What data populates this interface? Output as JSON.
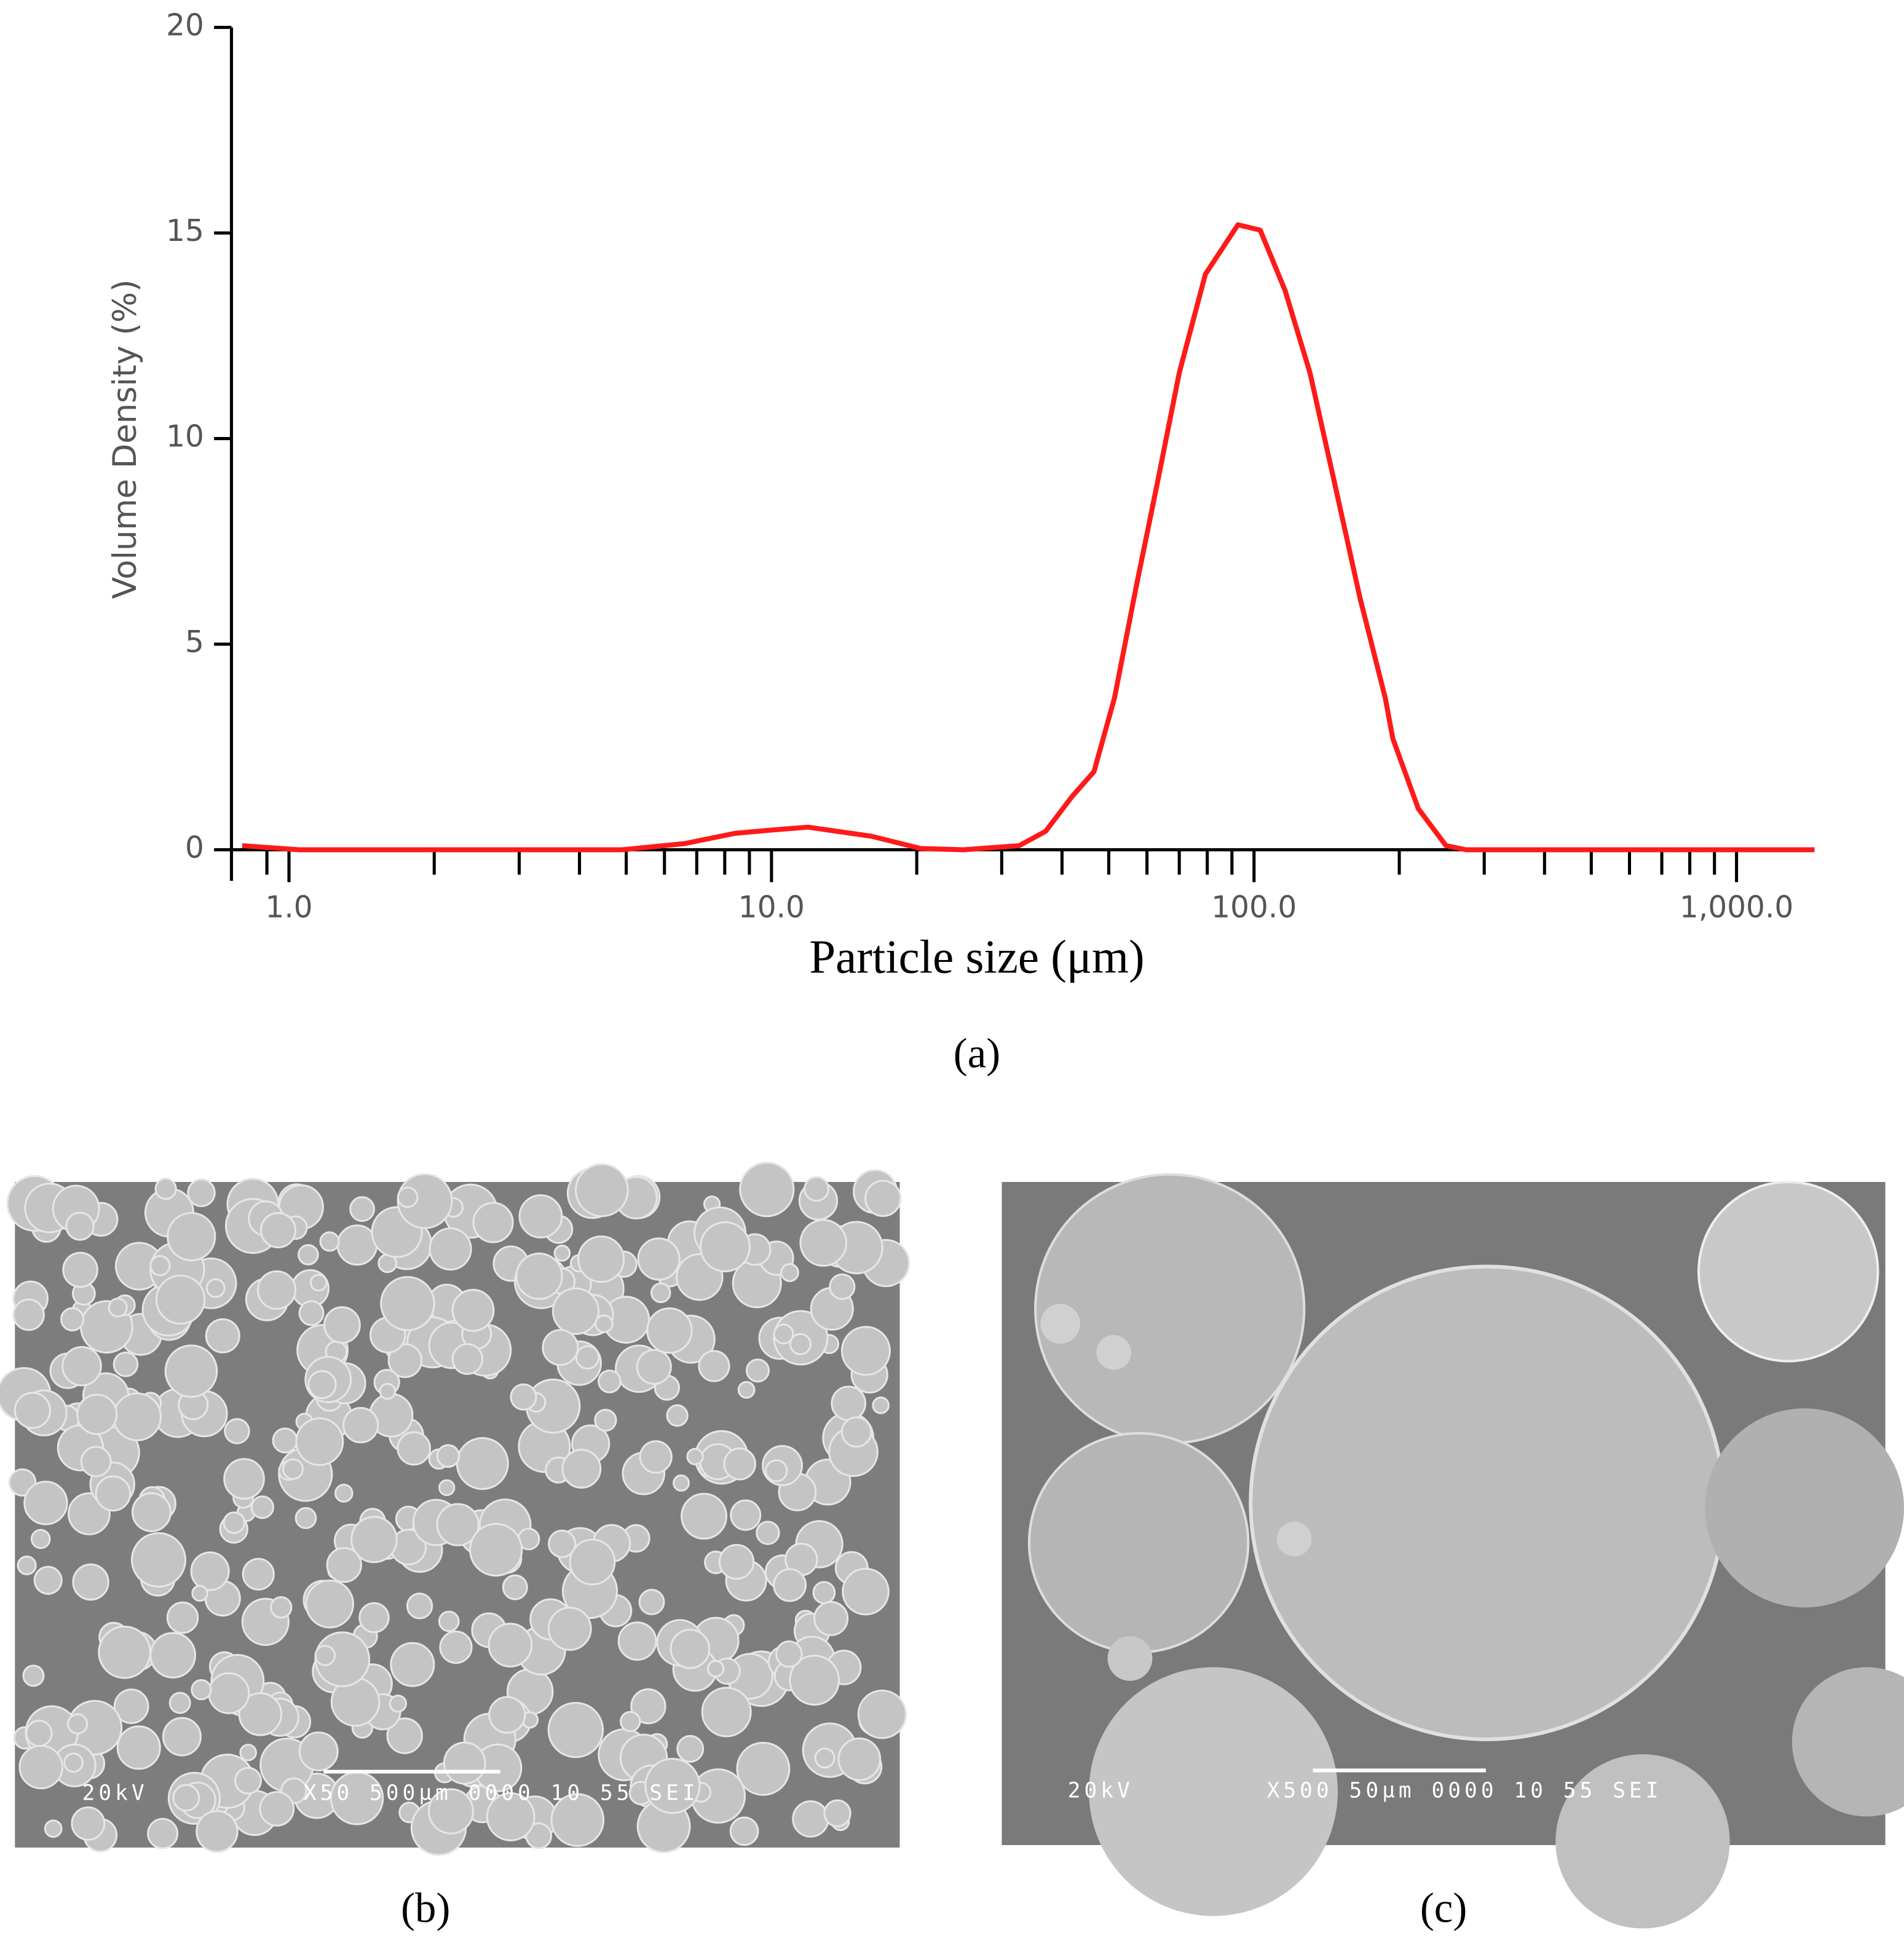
{
  "chart_data": {
    "type": "line",
    "x_label": "Particle size (μm)",
    "y_label": "Volume Density (%)",
    "xscale": "log",
    "color": "#ff1a1a",
    "x": [
      0.8,
      1.05,
      2,
      4.9,
      6.6,
      8.4,
      10,
      11.9,
      16.1,
      20.4,
      25,
      32.6,
      37,
      42,
      46.6,
      51.4,
      57,
      63,
      70,
      79.3,
      92.6,
      103,
      116,
      130.6,
      147,
      166,
      187,
      194,
      219,
      250,
      275,
      1450
    ],
    "values": [
      0.1,
      0,
      0,
      0,
      0.15,
      0.4,
      0.48,
      0.55,
      0.33,
      0.03,
      0,
      0.1,
      0.45,
      1.3,
      1.9,
      3.7,
      6.4,
      8.9,
      11.6,
      14.0,
      15.2,
      15.07,
      13.6,
      11.6,
      8.9,
      6.1,
      3.7,
      2.7,
      1.0,
      0.1,
      0,
      0
    ],
    "xlim": [
      0.76,
      1450
    ],
    "ylim": [
      0,
      20
    ],
    "xticks": [
      {
        "value": 1,
        "label": "1.0"
      },
      {
        "value": 10,
        "label": "10.0"
      },
      {
        "value": 100,
        "label": "100.0"
      },
      {
        "value": 1000,
        "label": "1,000.0"
      }
    ],
    "xminorticks": [
      0.9,
      2,
      3,
      4,
      5,
      6,
      7,
      8,
      9,
      20,
      30,
      40,
      50,
      60,
      70,
      80,
      90,
      200,
      300,
      400,
      500,
      600,
      700,
      800,
      900
    ],
    "yticks": [
      0,
      5,
      10,
      15,
      20
    ]
  },
  "panels": {
    "a": "(a)",
    "b": "(b)",
    "c": "(c)"
  },
  "sem_b": {
    "left": "20kV",
    "right": "X50 500µm 0000 10 55 SEI"
  },
  "sem_c": {
    "left": "20kV",
    "right": "X500  50µm 0000 10 55 SEI"
  }
}
